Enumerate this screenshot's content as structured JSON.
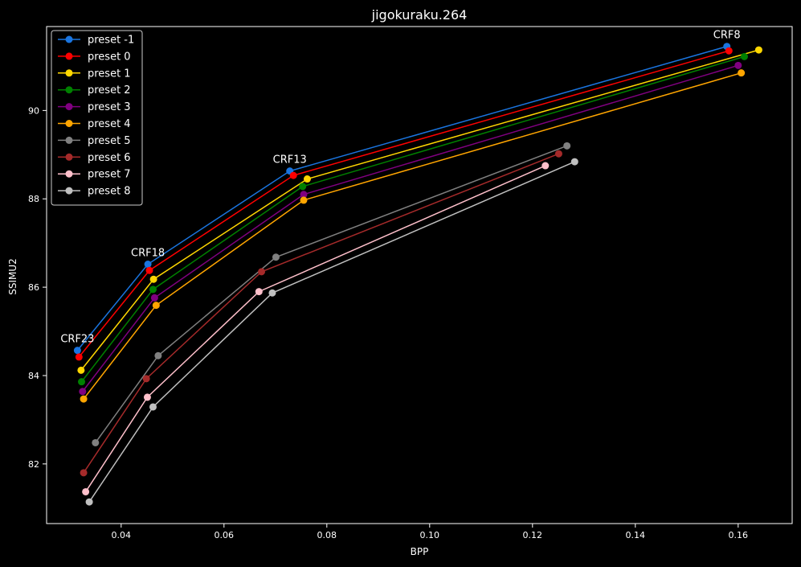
{
  "chart_data": {
    "type": "line",
    "title": "jigokuraku.264",
    "xlabel": "BPP",
    "ylabel": "SSIMU2",
    "xlim": [
      0.0255,
      0.1705
    ],
    "ylim": [
      80.65,
      91.9
    ],
    "x_ticks": [
      0.04,
      0.06,
      0.08,
      0.1,
      0.12,
      0.14,
      0.16
    ],
    "x_tick_labels": [
      "0.04",
      "0.06",
      "0.08",
      "0.10",
      "0.12",
      "0.14",
      "0.16"
    ],
    "y_ticks": [
      82,
      84,
      86,
      88,
      90
    ],
    "y_tick_labels": [
      "82",
      "84",
      "86",
      "88",
      "90"
    ],
    "grid": false,
    "legend_position": "upper-left",
    "background": "#000000",
    "series": [
      {
        "name": "preset -1",
        "color": "#1a75e0",
        "x": [
          0.0315,
          0.0452,
          0.0728,
          0.1578
        ],
        "y": [
          84.57,
          86.52,
          88.63,
          91.45
        ]
      },
      {
        "name": "preset 0",
        "color": "#ff0000",
        "x": [
          0.0318,
          0.0455,
          0.0735,
          0.1582
        ],
        "y": [
          84.42,
          86.38,
          88.53,
          91.35
        ]
      },
      {
        "name": "preset 1",
        "color": "#ffd700",
        "x": [
          0.0322,
          0.0463,
          0.0762,
          0.164
        ],
        "y": [
          84.12,
          86.18,
          88.45,
          91.37
        ]
      },
      {
        "name": "preset 2",
        "color": "#008000",
        "x": [
          0.0323,
          0.0462,
          0.0753,
          0.1612
        ],
        "y": [
          83.86,
          85.95,
          88.28,
          91.22
        ]
      },
      {
        "name": "preset 3",
        "color": "#800080",
        "x": [
          0.0325,
          0.0465,
          0.0755,
          0.16
        ],
        "y": [
          83.64,
          85.76,
          88.1,
          91.02
        ]
      },
      {
        "name": "preset 4",
        "color": "#ffa500",
        "x": [
          0.0327,
          0.0468,
          0.0755,
          0.1606
        ],
        "y": [
          83.47,
          85.59,
          87.97,
          90.85
        ]
      },
      {
        "name": "preset 5",
        "color": "#808080",
        "x": [
          0.035,
          0.0472,
          0.0701,
          0.1267
        ],
        "y": [
          82.48,
          84.45,
          86.68,
          89.2
        ]
      },
      {
        "name": "preset 6",
        "color": "#a52a2a",
        "x": [
          0.0327,
          0.0449,
          0.0673,
          0.1251
        ],
        "y": [
          81.8,
          83.93,
          86.35,
          89.02
        ]
      },
      {
        "name": "preset 7",
        "color": "#ffc0cb",
        "x": [
          0.0331,
          0.0451,
          0.0668,
          0.1225
        ],
        "y": [
          81.37,
          83.51,
          85.9,
          88.75
        ]
      },
      {
        "name": "preset 8",
        "color": "#c0c0c0",
        "x": [
          0.0338,
          0.0462,
          0.0694,
          0.1282
        ],
        "y": [
          81.14,
          83.29,
          85.87,
          88.84
        ]
      }
    ],
    "annotations": [
      {
        "text": "CRF23",
        "x": 0.0315,
        "y": 84.57
      },
      {
        "text": "CRF18",
        "x": 0.0452,
        "y": 86.52
      },
      {
        "text": "CRF13",
        "x": 0.0728,
        "y": 88.63
      },
      {
        "text": "CRF8",
        "x": 0.1578,
        "y": 91.45
      }
    ]
  }
}
